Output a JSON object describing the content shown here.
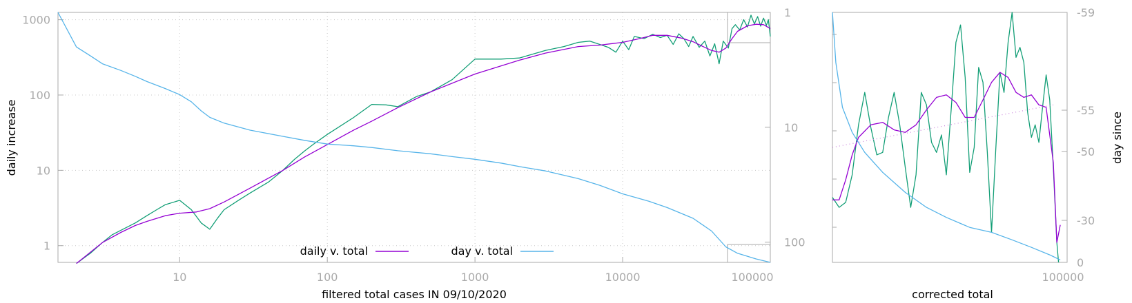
{
  "colors": {
    "daily_raw": "#129e76",
    "daily_fit": "#9400d3",
    "day_since": "#56b4e9",
    "trend": "#cc88dd",
    "axis": "#aaaaaa",
    "grid": "#c8c8c8",
    "text": "#000000"
  },
  "chart_data": [
    {
      "type": "line",
      "xlabel": "filtered total cases IN 09/10/2020",
      "ylabel": "daily increase",
      "y2label": "",
      "xscale": "log",
      "yscale": "log",
      "y2scale": "log-reversed",
      "xlim": [
        1.5,
        100000
      ],
      "ylim": [
        0.6,
        1250
      ],
      "y2lim": [
        1,
        150
      ],
      "grid": true,
      "legend_position": "bottom-center",
      "x_ticks": [
        "10",
        "100",
        "1000",
        "10000",
        "100000"
      ],
      "y_ticks": [
        "1",
        "10",
        "100",
        "1000"
      ],
      "y2_ticks": [
        "1",
        "10",
        "100"
      ],
      "series": [
        {
          "key": "daily_raw",
          "axis": "y",
          "points": [
            [
              2,
              0.58
            ],
            [
              2.5,
              0.8
            ],
            [
              3,
              1.1
            ],
            [
              3.5,
              1.4
            ],
            [
              4,
              1.6
            ],
            [
              5,
              2.0
            ],
            [
              6,
              2.5
            ],
            [
              7,
              3.0
            ],
            [
              8,
              3.5
            ],
            [
              10,
              4.0
            ],
            [
              12,
              3.0
            ],
            [
              14,
              2.0
            ],
            [
              16,
              1.65
            ],
            [
              18,
              2.3
            ],
            [
              20,
              3.0
            ],
            [
              25,
              4.0
            ],
            [
              30,
              5.0
            ],
            [
              40,
              7.0
            ],
            [
              50,
              10.0
            ],
            [
              60,
              14.0
            ],
            [
              70,
              18.0
            ],
            [
              80,
              22.0
            ],
            [
              100,
              30.0
            ],
            [
              150,
              50.0
            ],
            [
              200,
              75.0
            ],
            [
              250,
              74.0
            ],
            [
              300,
              70.0
            ],
            [
              400,
              95.0
            ],
            [
              500,
              110.0
            ],
            [
              700,
              160.0
            ],
            [
              1000,
              300.0
            ],
            [
              1500,
              300.0
            ],
            [
              2000,
              310.0
            ],
            [
              3000,
              390.0
            ],
            [
              4000,
              440.0
            ],
            [
              5000,
              500.0
            ],
            [
              6000,
              520.0
            ],
            [
              7000,
              470.0
            ],
            [
              8000,
              430.0
            ],
            [
              9000,
              370.0
            ],
            [
              10000,
              520.0
            ],
            [
              11000,
              400.0
            ],
            [
              12000,
              600.0
            ],
            [
              14000,
              560.0
            ],
            [
              16000,
              640.0
            ],
            [
              18000,
              580.0
            ],
            [
              20000,
              620.0
            ],
            [
              22000,
              470.0
            ],
            [
              24000,
              650.0
            ],
            [
              26000,
              560.0
            ],
            [
              28000,
              440.0
            ],
            [
              30000,
              600.0
            ],
            [
              33000,
              430.0
            ],
            [
              36000,
              520.0
            ],
            [
              39000,
              330.0
            ],
            [
              42000,
              480.0
            ],
            [
              45000,
              260.0
            ],
            [
              48000,
              520.0
            ],
            [
              52000,
              420.0
            ],
            [
              55000,
              760.0
            ],
            [
              58000,
              860.0
            ],
            [
              62000,
              730.0
            ],
            [
              66000,
              1000.0
            ],
            [
              70000,
              800.0
            ],
            [
              74000,
              1150.0
            ],
            [
              78000,
              880.0
            ],
            [
              82000,
              1100.0
            ],
            [
              86000,
              820.0
            ],
            [
              90000,
              1050.0
            ],
            [
              94000,
              840.0
            ],
            [
              97000,
              1000.0
            ],
            [
              100000,
              600.0
            ]
          ]
        },
        {
          "key": "daily_fit",
          "axis": "y",
          "points": [
            [
              2,
              0.58
            ],
            [
              3,
              1.1
            ],
            [
              4,
              1.5
            ],
            [
              5,
              1.85
            ],
            [
              6,
              2.1
            ],
            [
              8,
              2.5
            ],
            [
              10,
              2.7
            ],
            [
              13,
              2.8
            ],
            [
              16,
              3.1
            ],
            [
              20,
              3.8
            ],
            [
              30,
              5.8
            ],
            [
              50,
              10.0
            ],
            [
              70,
              15.0
            ],
            [
              100,
              22.0
            ],
            [
              150,
              34.0
            ],
            [
              200,
              45.0
            ],
            [
              300,
              68.0
            ],
            [
              500,
              110.0
            ],
            [
              1000,
              190.0
            ],
            [
              2000,
              290.0
            ],
            [
              3000,
              360.0
            ],
            [
              5000,
              440.0
            ],
            [
              7000,
              460.0
            ],
            [
              10000,
              500.0
            ],
            [
              13000,
              560.0
            ],
            [
              16000,
              620.0
            ],
            [
              20000,
              620.0
            ],
            [
              25000,
              570.0
            ],
            [
              30000,
              510.0
            ],
            [
              35000,
              440.0
            ],
            [
              40000,
              390.0
            ],
            [
              45000,
              370.0
            ],
            [
              50000,
              420.0
            ],
            [
              55000,
              560.0
            ],
            [
              60000,
              700.0
            ],
            [
              70000,
              830.0
            ],
            [
              80000,
              870.0
            ],
            [
              90000,
              860.0
            ],
            [
              100000,
              760.0
            ]
          ]
        },
        {
          "key": "day_since",
          "axis": "y2",
          "points": [
            [
              1.5,
              1.0
            ],
            [
              2,
              2.0
            ],
            [
              2.5,
              2.4
            ],
            [
              3,
              2.8
            ],
            [
              4,
              3.2
            ],
            [
              5,
              3.6
            ],
            [
              6,
              4.0
            ],
            [
              8,
              4.6
            ],
            [
              10,
              5.2
            ],
            [
              12,
              6.0
            ],
            [
              14,
              7.2
            ],
            [
              16,
              8.2
            ],
            [
              20,
              9.2
            ],
            [
              30,
              10.6
            ],
            [
              50,
              12.0
            ],
            [
              70,
              13.0
            ],
            [
              100,
              14.0
            ],
            [
              150,
              14.5
            ],
            [
              200,
              15.0
            ],
            [
              300,
              16.0
            ],
            [
              500,
              17.0
            ],
            [
              700,
              18.0
            ],
            [
              1000,
              19.0
            ],
            [
              1500,
              20.5
            ],
            [
              2000,
              22.0
            ],
            [
              3000,
              24.0
            ],
            [
              5000,
              28.0
            ],
            [
              7000,
              32.0
            ],
            [
              10000,
              38.0
            ],
            [
              15000,
              44.0
            ],
            [
              20000,
              50.0
            ],
            [
              30000,
              62.0
            ],
            [
              40000,
              80.0
            ],
            [
              50000,
              110.0
            ],
            [
              60000,
              125.0
            ],
            [
              80000,
              140.0
            ],
            [
              100000,
              150.0
            ]
          ]
        }
      ],
      "legend": [
        {
          "label": "daily v. total",
          "key": "daily_fit"
        },
        {
          "label": "day v. total",
          "key": "day_since"
        }
      ]
    },
    {
      "type": "line",
      "xlabel": "corrected total",
      "ylabel": "",
      "y2label": "day since",
      "xscale": "log",
      "xlim": [
        50000,
        100000
      ],
      "ylim": [
        0,
        1
      ],
      "y2_ticks": [
        "-59",
        "-55",
        "-50",
        "-30",
        "0"
      ],
      "x_ticks": [
        "100000"
      ],
      "series": [
        {
          "key": "daily_raw",
          "points": [
            [
              50000,
              0.26
            ],
            [
              51000,
              0.22
            ],
            [
              52000,
              0.24
            ],
            [
              53000,
              0.35
            ],
            [
              54000,
              0.55
            ],
            [
              55000,
              0.68
            ],
            [
              56000,
              0.54
            ],
            [
              57000,
              0.43
            ],
            [
              58000,
              0.44
            ],
            [
              59000,
              0.58
            ],
            [
              60000,
              0.68
            ],
            [
              61000,
              0.55
            ],
            [
              62000,
              0.38
            ],
            [
              63000,
              0.22
            ],
            [
              64000,
              0.35
            ],
            [
              65000,
              0.68
            ],
            [
              66000,
              0.63
            ],
            [
              67000,
              0.48
            ],
            [
              68000,
              0.44
            ],
            [
              69000,
              0.51
            ],
            [
              70000,
              0.35
            ],
            [
              71000,
              0.61
            ],
            [
              72000,
              0.88
            ],
            [
              73000,
              0.95
            ],
            [
              74000,
              0.74
            ],
            [
              75000,
              0.36
            ],
            [
              76000,
              0.46
            ],
            [
              77000,
              0.78
            ],
            [
              78000,
              0.72
            ],
            [
              79000,
              0.44
            ],
            [
              80000,
              0.12
            ],
            [
              81000,
              0.45
            ],
            [
              82000,
              0.76
            ],
            [
              83000,
              0.68
            ],
            [
              84000,
              0.88
            ],
            [
              85000,
              1.0
            ],
            [
              86000,
              0.82
            ],
            [
              87000,
              0.86
            ],
            [
              88000,
              0.8
            ],
            [
              89000,
              0.6
            ],
            [
              90000,
              0.5
            ],
            [
              91000,
              0.55
            ],
            [
              92000,
              0.48
            ],
            [
              93000,
              0.62
            ],
            [
              94000,
              0.75
            ],
            [
              95000,
              0.65
            ],
            [
              96000,
              0.38
            ],
            [
              97000,
              0.08
            ],
            [
              97500,
              0.0
            ]
          ]
        },
        {
          "key": "daily_fit",
          "points": [
            [
              50000,
              0.25
            ],
            [
              51000,
              0.25
            ],
            [
              52000,
              0.33
            ],
            [
              53000,
              0.43
            ],
            [
              54000,
              0.5
            ],
            [
              56000,
              0.55
            ],
            [
              58000,
              0.56
            ],
            [
              60000,
              0.53
            ],
            [
              62000,
              0.52
            ],
            [
              64000,
              0.55
            ],
            [
              66000,
              0.61
            ],
            [
              68000,
              0.66
            ],
            [
              70000,
              0.67
            ],
            [
              72000,
              0.64
            ],
            [
              74000,
              0.58
            ],
            [
              76000,
              0.58
            ],
            [
              78000,
              0.65
            ],
            [
              80000,
              0.72
            ],
            [
              82000,
              0.76
            ],
            [
              84000,
              0.74
            ],
            [
              86000,
              0.68
            ],
            [
              88000,
              0.66
            ],
            [
              90000,
              0.67
            ],
            [
              92000,
              0.63
            ],
            [
              94000,
              0.62
            ],
            [
              96000,
              0.4
            ],
            [
              97000,
              0.08
            ],
            [
              98000,
              0.15
            ]
          ]
        },
        {
          "key": "trend",
          "style": "dotted",
          "points": [
            [
              50000,
              0.46
            ],
            [
              96000,
              0.63
            ]
          ]
        },
        {
          "key": "day_since",
          "points": [
            [
              50000,
              1.0
            ],
            [
              50500,
              0.8
            ],
            [
              51500,
              0.62
            ],
            [
              53000,
              0.52
            ],
            [
              55000,
              0.44
            ],
            [
              58000,
              0.36
            ],
            [
              62000,
              0.28
            ],
            [
              66000,
              0.22
            ],
            [
              70000,
              0.18
            ],
            [
              75000,
              0.14
            ],
            [
              80000,
              0.12
            ],
            [
              85000,
              0.09
            ],
            [
              90000,
              0.06
            ],
            [
              95000,
              0.03
            ],
            [
              98000,
              0.01
            ]
          ]
        }
      ]
    }
  ]
}
